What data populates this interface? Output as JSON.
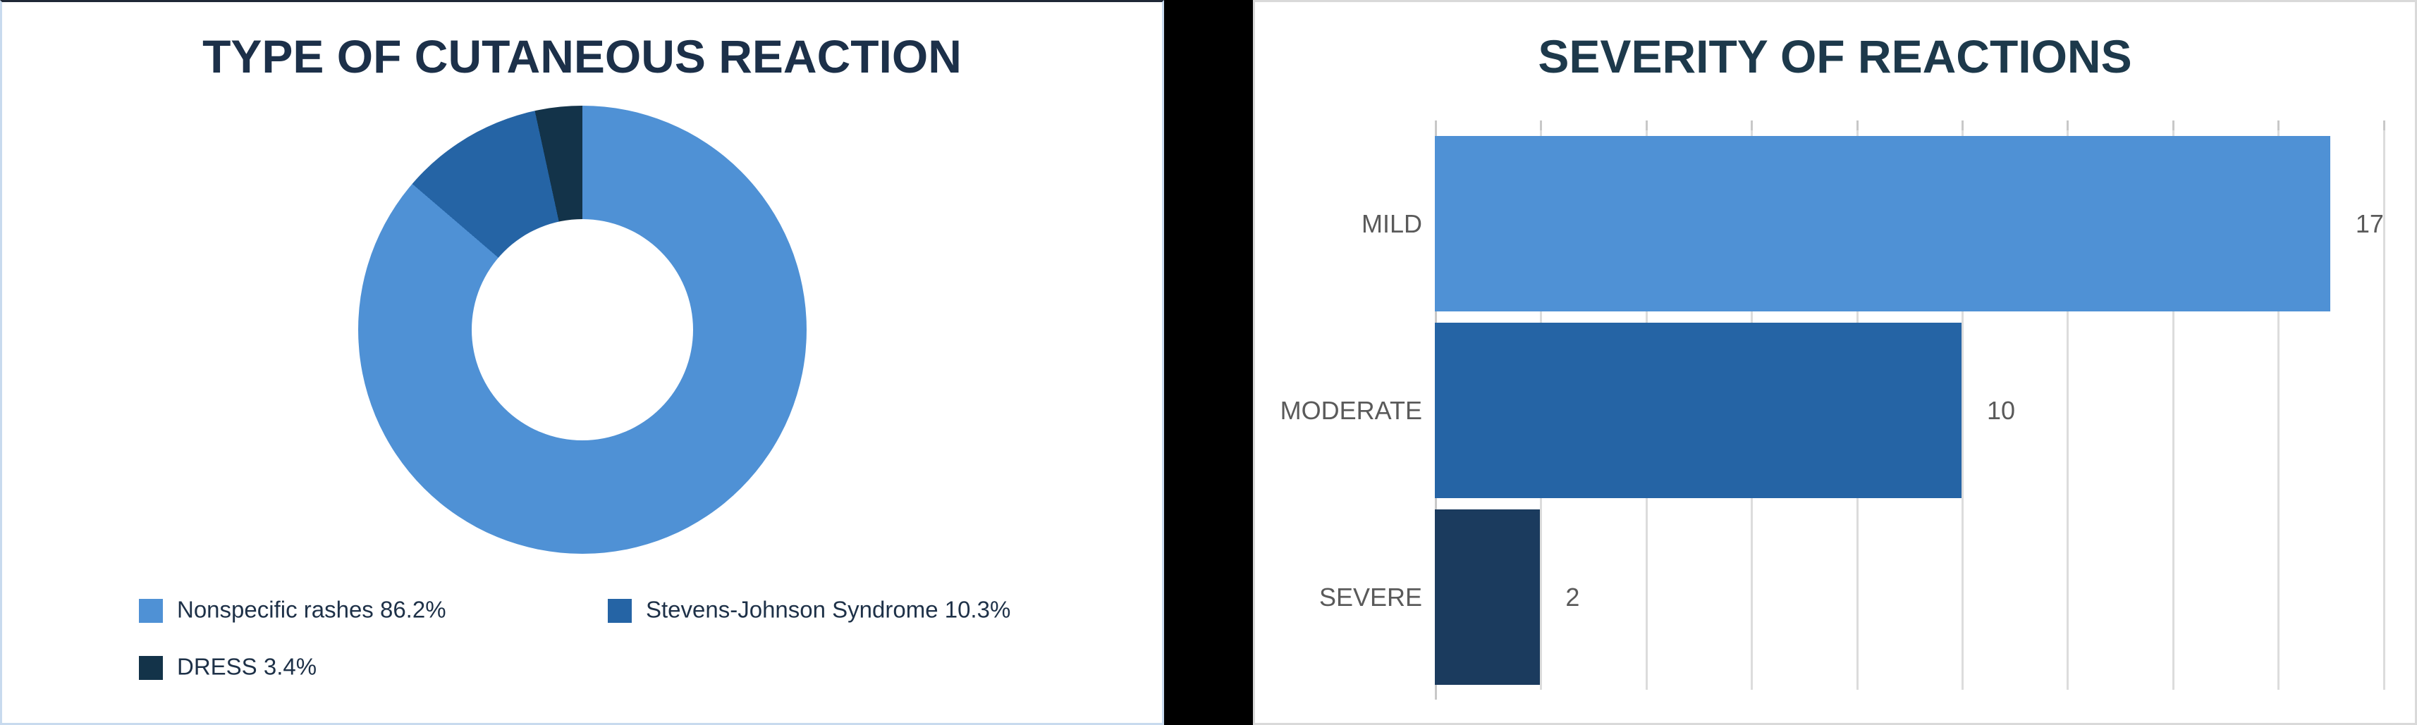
{
  "left_panel": {
    "title": "TYPE OF CUTANEOUS REACTION",
    "title_color": "#1c3049",
    "border_color": "#c8daee",
    "legend": [
      {
        "text": "Nonspecific rashes 86.2%",
        "color": "#4f91d5"
      },
      {
        "text": "Stevens-Johnson Syndrome 10.3%",
        "color": "#2564a5"
      },
      {
        "text": "DRESS 3.4%",
        "color": "#133349"
      }
    ]
  },
  "right_panel": {
    "title": "SEVERITY OF REACTIONS",
    "title_color": "#1d394b",
    "border_color": "#d9d9d9"
  },
  "divider_color": "#000000",
  "chart_data": [
    {
      "type": "pie",
      "title": "TYPE OF CUTANEOUS REACTION",
      "labels": [
        "Nonspecific rashes",
        "Stevens-Johnson Syndrome",
        "DRESS"
      ],
      "values": [
        86.2,
        10.3,
        3.4
      ],
      "unit": "%",
      "colors": [
        "#4f91d5",
        "#2564a5",
        "#133349"
      ],
      "donut_hole_ratio": 0.49,
      "start_angle_deg": 0,
      "direction": "clockwise",
      "legend_position": "bottom"
    },
    {
      "type": "bar",
      "title": "SEVERITY OF REACTIONS",
      "orientation": "horizontal",
      "categories": [
        "MILD",
        "MODERATE",
        "SEVERE"
      ],
      "values": [
        17,
        10,
        2
      ],
      "value_labels": [
        "17",
        "10",
        "2"
      ],
      "colors": [
        "#4f91d5",
        "#2564a5",
        "#1b3b5e"
      ],
      "xlim": [
        0,
        18.4
      ],
      "gridline_step": 2,
      "grid": true,
      "label_color": "#5a5a5a"
    }
  ]
}
